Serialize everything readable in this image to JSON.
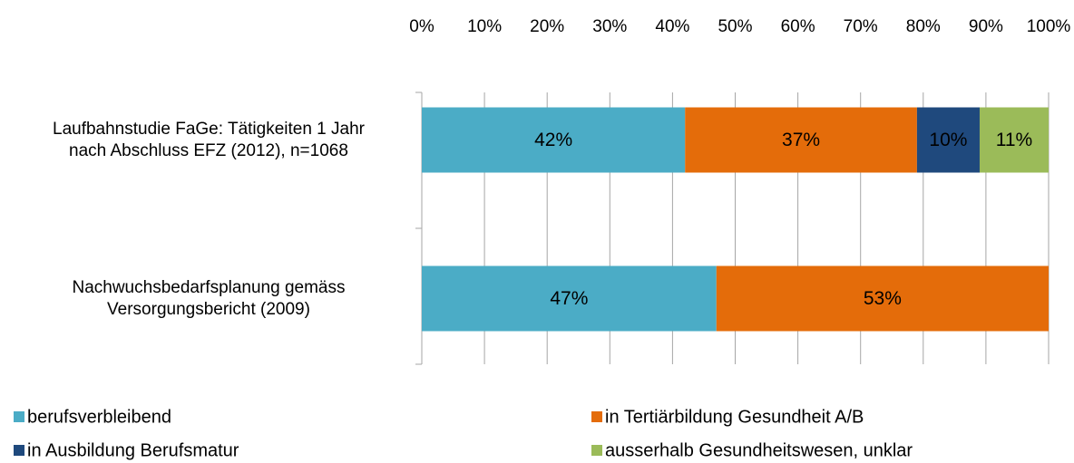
{
  "chart_data": {
    "type": "stacked_barh",
    "categories": [
      "Laufbahnstudie FaGe: Tätigkeiten 1 Jahr\nnach Abschluss EFZ (2012), n=1068",
      "Nachwuchsbedarfsplanung gemäss\nVersorgungsbericht (2009)"
    ],
    "series": [
      {
        "name": "berufsverbleibend",
        "color": "#4bacc6",
        "values": [
          42,
          47
        ],
        "value_labels": [
          "42%",
          "47%"
        ]
      },
      {
        "name": "in Tertiärbildung Gesundheit A/B",
        "color": "#e46c0a",
        "values": [
          37,
          53
        ],
        "value_labels": [
          "37%",
          "53%"
        ]
      },
      {
        "name": "in Ausbildung Berufsmatur",
        "color": "#1f497d",
        "values": [
          10,
          null
        ],
        "value_labels": [
          "10%",
          null
        ]
      },
      {
        "name": "ausserhalb Gesundheitswesen, unklar",
        "color": "#9bbb59",
        "values": [
          11,
          null
        ],
        "value_labels": [
          "11%",
          null
        ]
      }
    ],
    "xlim": [
      0,
      100
    ],
    "xticks": [
      {
        "value": 0,
        "label": "0%"
      },
      {
        "value": 10,
        "label": "10%"
      },
      {
        "value": 20,
        "label": "20%"
      },
      {
        "value": 30,
        "label": "30%"
      },
      {
        "value": 40,
        "label": "40%"
      },
      {
        "value": 50,
        "label": "50%"
      },
      {
        "value": 60,
        "label": "60%"
      },
      {
        "value": 70,
        "label": "70%"
      },
      {
        "value": 80,
        "label": "80%"
      },
      {
        "value": 90,
        "label": "90%"
      },
      {
        "value": 100,
        "label": "100%"
      }
    ],
    "grid": true,
    "legend": "bottom"
  }
}
